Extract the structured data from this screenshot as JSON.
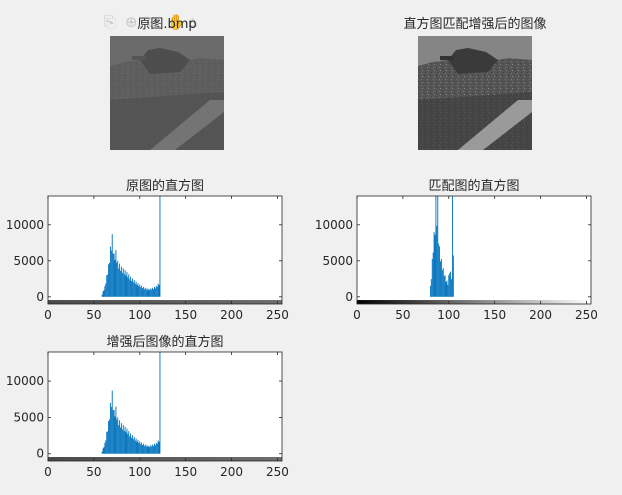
{
  "toolbar": {
    "icons": [
      "save-icon",
      "zoom-in-icon",
      "zoom-out-icon",
      "pan-icon",
      "home-icon"
    ],
    "glyphs": [
      "⎘",
      "⊕",
      "⊖",
      "✋",
      "⌂"
    ]
  },
  "images": {
    "original_title": "原图.bmp",
    "matched_title": "直方图匹配增强后的图像"
  },
  "colors": {
    "bar": "#0072bd",
    "axes_bg": "#ffffff",
    "figure_bg": "#f0f0f0",
    "axis": "#262626"
  },
  "chart_data": [
    {
      "type": "bar",
      "title": "原图的直方图",
      "xlabel": "",
      "ylabel": "",
      "xlim": [
        0,
        255
      ],
      "ylim": [
        -1000,
        14000
      ],
      "xticks": [
        "0",
        "50",
        "100",
        "150",
        "200",
        "250"
      ],
      "yticks": [
        "0",
        "5000",
        "10000"
      ],
      "colorbar": "gray-gradient",
      "peaks": {
        "x": [
          58,
          62,
          66,
          68,
          70,
          72,
          74,
          76,
          80,
          85,
          90,
          95,
          100,
          105,
          110,
          115,
          118,
          121,
          122
        ],
        "y": [
          0,
          1500,
          4500,
          7000,
          8700,
          6000,
          6500,
          5000,
          4200,
          3600,
          2800,
          2200,
          1700,
          1300,
          1100,
          1300,
          1500,
          2000,
          14000
        ]
      }
    },
    {
      "type": "bar",
      "title": "匹配图的直方图",
      "xlabel": "",
      "ylabel": "",
      "xlim": [
        0,
        255
      ],
      "ylim": [
        -1000,
        14000
      ],
      "xticks": [
        "0",
        "50",
        "100",
        "150",
        "200",
        "250"
      ],
      "yticks": [
        "0",
        "5000",
        "10000"
      ],
      "colorbar": "gray-gradient",
      "peaks": {
        "x": [
          79,
          81,
          83,
          85,
          86,
          87,
          88,
          89,
          90,
          91,
          93,
          95,
          97,
          99,
          101,
          103,
          104,
          106
        ],
        "y": [
          0,
          3000,
          7500,
          10500,
          14000,
          12000,
          14000,
          9000,
          7000,
          6000,
          4500,
          3500,
          2500,
          2000,
          4000,
          3000,
          14000,
          0
        ]
      }
    },
    {
      "type": "bar",
      "title": "增强后图像的直方图",
      "xlabel": "",
      "ylabel": "",
      "xlim": [
        0,
        255
      ],
      "ylim": [
        -1000,
        14000
      ],
      "xticks": [
        "0",
        "50",
        "100",
        "150",
        "200",
        "250"
      ],
      "yticks": [
        "0",
        "5000",
        "10000"
      ],
      "colorbar": "gray-gradient",
      "peaks": {
        "x": [
          58,
          62,
          66,
          68,
          70,
          72,
          74,
          76,
          80,
          85,
          90,
          95,
          100,
          105,
          110,
          115,
          118,
          121,
          122
        ],
        "y": [
          0,
          1500,
          4500,
          7000,
          8700,
          6000,
          6500,
          5000,
          4200,
          3600,
          2800,
          2200,
          1700,
          1300,
          1100,
          1300,
          1500,
          2000,
          14000
        ]
      }
    }
  ]
}
